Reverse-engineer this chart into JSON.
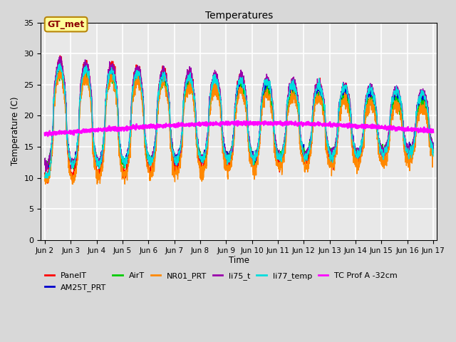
{
  "title": "Temperatures",
  "xlabel": "Time",
  "ylabel": "Temperature (C)",
  "xlim_days": [
    1.85,
    17.15
  ],
  "ylim": [
    0,
    35
  ],
  "yticks": [
    0,
    5,
    10,
    15,
    20,
    25,
    30,
    35
  ],
  "xtick_labels": [
    "Jun 2",
    "Jun 3",
    "Jun 4",
    "Jun 5",
    "Jun 6",
    "Jun 7",
    "Jun 8",
    "Jun 9",
    "Jun 10",
    "Jun 11",
    "Jun 12",
    "Jun 13",
    "Jun 14",
    "Jun 15",
    "Jun 16",
    "Jun 17"
  ],
  "xtick_days": [
    2,
    3,
    4,
    5,
    6,
    7,
    8,
    9,
    10,
    11,
    12,
    13,
    14,
    15,
    16,
    17
  ],
  "fig_bg_color": "#d8d8d8",
  "plot_bg_color": "#e8e8e8",
  "grid_color": "#ffffff",
  "annotation_text": "GT_met",
  "annotation_color": "#8b0000",
  "annotation_bg": "#ffff99",
  "annotation_edge": "#b8860b",
  "legend_entries": [
    "PanelT",
    "AM25T_PRT",
    "AirT",
    "NR01_PRT",
    "li75_t",
    "li77_temp",
    "TC Prof A -32cm"
  ],
  "legend_colors": [
    "#ff0000",
    "#0000cc",
    "#00cc00",
    "#ff8800",
    "#9900aa",
    "#00dddd",
    "#ff00ff"
  ],
  "line_width": 1.0
}
